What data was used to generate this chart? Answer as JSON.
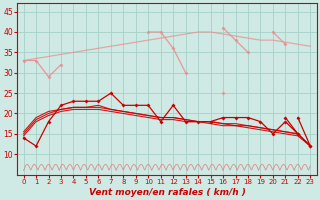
{
  "hours": [
    0,
    1,
    2,
    3,
    4,
    5,
    6,
    7,
    8,
    9,
    10,
    11,
    12,
    13,
    14,
    15,
    16,
    17,
    18,
    19,
    20,
    21,
    22,
    23
  ],
  "bg_color": "#cfe9e5",
  "grid_color": "#aad4cc",
  "line_salmon_trend": [
    33,
    33.5,
    34,
    34.5,
    35,
    35.5,
    36,
    36.5,
    37,
    37.5,
    38,
    38.5,
    39,
    39.5,
    40,
    40,
    39.5,
    39,
    38.5,
    38,
    38,
    37.5,
    37,
    36.5
  ],
  "line_pink_main": [
    33,
    33,
    29,
    32,
    null,
    null,
    null,
    null,
    null,
    null,
    40,
    40,
    36,
    30,
    null,
    null,
    25,
    null,
    null,
    null,
    null,
    null,
    null,
    null
  ],
  "line_pink_right": [
    null,
    null,
    null,
    null,
    null,
    null,
    null,
    null,
    null,
    null,
    null,
    null,
    null,
    null,
    null,
    null,
    41,
    38,
    35,
    null,
    40,
    37,
    null,
    null
  ],
  "line_darkred_smooth1": [
    14.5,
    18,
    19.5,
    20.5,
    21,
    21,
    21,
    20.5,
    20,
    19.5,
    19,
    18.5,
    18.5,
    18,
    18,
    17.5,
    17,
    17,
    16.5,
    16,
    15.5,
    15,
    14.5,
    12
  ],
  "line_darkred_smooth2": [
    15,
    18.5,
    20,
    21,
    21.5,
    21.5,
    21.5,
    21,
    20.5,
    20,
    19.5,
    19,
    19,
    18.5,
    18,
    18,
    17.5,
    17,
    17,
    16.5,
    16,
    15.5,
    15,
    12
  ],
  "line_darkred_smooth3": [
    15.5,
    19,
    20.5,
    21,
    21.5,
    21.5,
    22,
    21,
    20.5,
    20,
    19.5,
    19,
    19,
    18.5,
    18,
    18,
    17.5,
    17.5,
    17,
    16.5,
    16,
    15.5,
    15,
    12
  ],
  "line_spiky_markers": [
    14,
    12,
    18,
    22,
    23,
    23,
    23,
    25,
    22,
    22,
    22,
    18,
    22,
    18,
    18,
    18,
    19,
    19,
    19,
    18,
    15,
    18,
    15,
    12
  ],
  "line_spiky_peaks": [
    null,
    null,
    null,
    null,
    null,
    null,
    25,
    null,
    null,
    null,
    null,
    null,
    null,
    null,
    null,
    null,
    null,
    null,
    null,
    null,
    null,
    null,
    null,
    null
  ],
  "line_right_peak": [
    null,
    null,
    null,
    null,
    null,
    null,
    null,
    null,
    null,
    null,
    null,
    null,
    null,
    null,
    null,
    null,
    null,
    null,
    null,
    null,
    null,
    19,
    15,
    null
  ],
  "line_right_peak2": [
    null,
    null,
    null,
    null,
    null,
    null,
    null,
    null,
    null,
    null,
    null,
    null,
    null,
    null,
    null,
    null,
    null,
    null,
    null,
    null,
    null,
    null,
    19,
    12
  ],
  "ylim": [
    5,
    47
  ],
  "yticks": [
    10,
    15,
    20,
    25,
    30,
    35,
    40,
    45
  ],
  "xlabel": "Vent moyen/en rafales ( km/h )",
  "xlabel_color": "#cc0000",
  "axis_color": "#cc0000",
  "tick_color": "#cc0000",
  "line_color_pink": "#e89090",
  "line_color_darkred": "#cc0000",
  "bottom_zigzag_color": "#dd7777"
}
